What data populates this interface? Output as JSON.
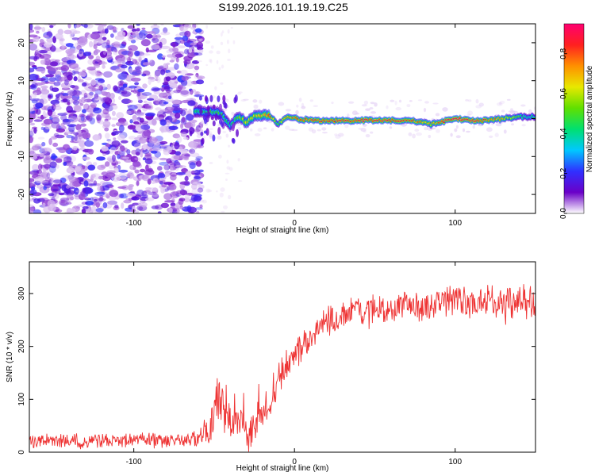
{
  "title": "S199.2026.101.19.19.C25",
  "chart_data": [
    {
      "type": "heatmap",
      "panel": "spectrogram",
      "xlabel": "Height of straight line (km)",
      "ylabel": "Frequency (Hz)",
      "xlim": [
        -165,
        150
      ],
      "ylim": [
        -25,
        25
      ],
      "xticks": [
        -100,
        0,
        100
      ],
      "yticks": [
        -20,
        -10,
        0,
        10,
        20
      ],
      "noise_region_x": [
        -165,
        -62
      ],
      "noise_region_clear_x": [
        -62,
        150
      ],
      "signal_ridge": {
        "x": [
          -62,
          -55,
          -50,
          -45,
          -40,
          -35,
          -30,
          -25,
          -20,
          -15,
          -10,
          -5,
          0,
          10,
          20,
          40,
          60,
          70,
          80,
          85,
          90,
          95,
          100,
          110,
          120,
          130,
          140,
          150
        ],
        "freq": [
          2,
          1.5,
          2,
          1,
          -2,
          0.5,
          -1,
          0.5,
          1,
          0.5,
          -1.5,
          0.5,
          0,
          -0.5,
          -0.5,
          -0.5,
          -0.5,
          -0.5,
          -1,
          -1.5,
          -1,
          -0.5,
          0,
          -0.5,
          -0.5,
          0,
          0.5,
          0.5
        ],
        "amplitude": [
          0.45,
          0.5,
          0.45,
          0.5,
          0.4,
          0.55,
          0.6,
          0.65,
          0.7,
          0.8,
          0.5,
          0.75,
          0.8,
          0.85,
          0.85,
          0.9,
          0.9,
          0.85,
          0.75,
          0.7,
          0.8,
          0.9,
          0.95,
          0.9,
          0.85,
          0.7,
          0.5,
          0.4
        ]
      }
    },
    {
      "type": "line",
      "panel": "snr",
      "xlabel": "Height of straight line (km)",
      "ylabel": "SNR (10 * v/v)",
      "xlim": [
        -165,
        150
      ],
      "ylim": [
        0,
        360
      ],
      "xticks": [
        -100,
        0,
        100
      ],
      "yticks": [
        0,
        100,
        200,
        300
      ],
      "series": [
        {
          "name": "SNR",
          "color": "#ee3333",
          "x": [
            -165,
            -150,
            -125,
            -100,
            -75,
            -60,
            -52,
            -48,
            -44,
            -40,
            -36,
            -32,
            -28,
            -24,
            -20,
            -16,
            -12,
            -8,
            -4,
            0,
            5,
            10,
            15,
            20,
            25,
            30,
            40,
            50,
            60,
            70,
            80,
            90,
            100,
            110,
            120,
            130,
            140,
            150
          ],
          "values": [
            20,
            20,
            20,
            22,
            23,
            25,
            50,
            100,
            90,
            60,
            70,
            50,
            30,
            50,
            80,
            100,
            120,
            150,
            170,
            180,
            200,
            215,
            235,
            250,
            250,
            262,
            270,
            272,
            270,
            275,
            275,
            280,
            285,
            280,
            290,
            280,
            285,
            285
          ],
          "noise_amplitude": [
            14,
            14,
            14,
            14,
            14,
            15,
            35,
            45,
            45,
            50,
            45,
            40,
            40,
            40,
            40,
            35,
            35,
            30,
            30,
            28,
            28,
            28,
            28,
            28,
            26,
            26,
            26,
            26,
            26,
            26,
            26,
            28,
            28,
            28,
            28,
            28,
            30,
            30
          ]
        }
      ]
    }
  ],
  "colorbar": {
    "label": "Normalized spectral amplitude",
    "range": [
      0,
      0.95
    ],
    "ticks": [
      "0.0",
      "0.2",
      "0.4",
      "0.6",
      "0.8"
    ],
    "tick_values": [
      0,
      0.2,
      0.4,
      0.6,
      0.8
    ],
    "colors": [
      "#ffffff",
      "#6a00c8",
      "#3030ff",
      "#00c8ff",
      "#00e070",
      "#60e000",
      "#e8e800",
      "#ff9000",
      "#ff2020",
      "#ff0070"
    ]
  }
}
